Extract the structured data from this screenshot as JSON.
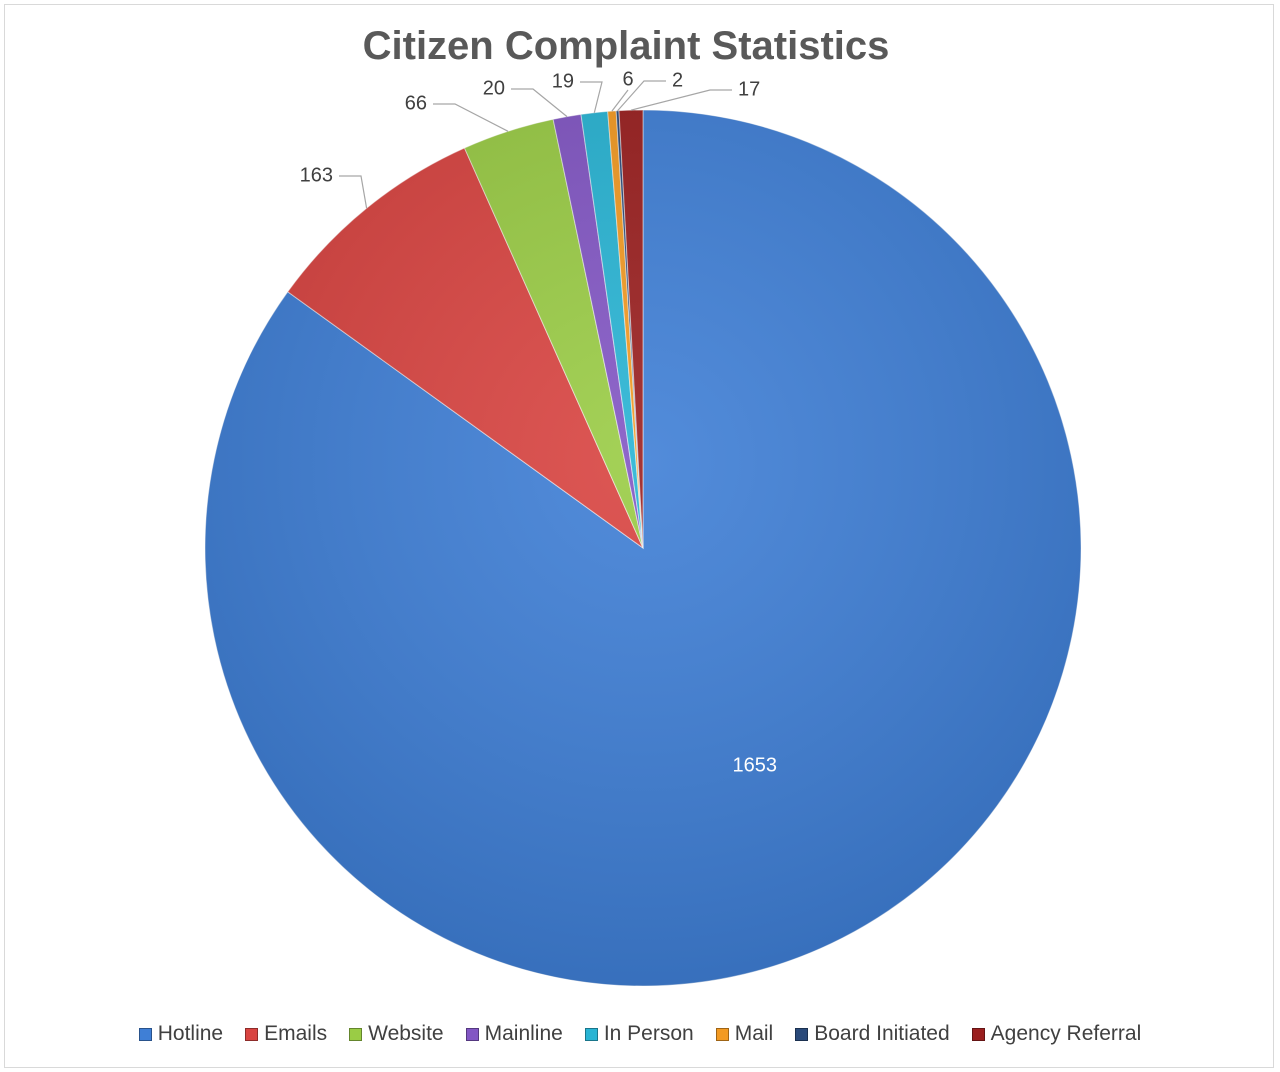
{
  "chart_data": {
    "type": "pie",
    "title": "Citizen Complaint Statistics",
    "legend_position": "bottom",
    "slices": [
      {
        "label": "Hotline",
        "value": 1653,
        "color": "#3f7fd6"
      },
      {
        "label": "Emails",
        "value": 163,
        "color": "#d94441"
      },
      {
        "label": "Website",
        "value": 66,
        "color": "#9acc45"
      },
      {
        "label": "Mainline",
        "value": 20,
        "color": "#8256c4"
      },
      {
        "label": "In Person",
        "value": 19,
        "color": "#28b4d4"
      },
      {
        "label": "Mail",
        "value": 6,
        "color": "#f39a22"
      },
      {
        "label": "Board Initiated",
        "value": 2,
        "color": "#2a4a7a"
      },
      {
        "label": "Agency Referral",
        "value": 17,
        "color": "#9a1f1f"
      }
    ]
  }
}
